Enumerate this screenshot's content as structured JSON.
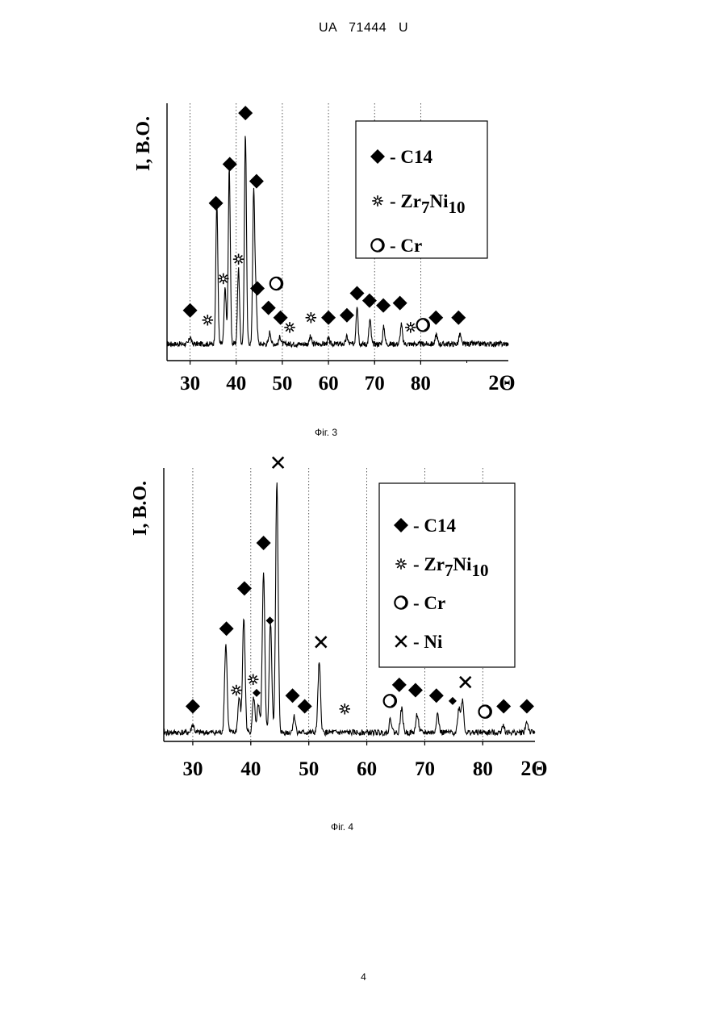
{
  "page": {
    "header": "UA   71444   U",
    "page_number": "4"
  },
  "chart_data": [
    {
      "type": "line",
      "caption": "Фіг. 3",
      "ylabel": "I, B.O.",
      "xlabel": "2Θ",
      "xlim": [
        25,
        99
      ],
      "ylim": [
        0,
        100
      ],
      "x_ticks": [
        30,
        40,
        50,
        60,
        70,
        80
      ],
      "grid": {
        "vertical_dotted": [
          30,
          40,
          50,
          60,
          70,
          80
        ]
      },
      "legend": {
        "placement": "top-right",
        "entries": [
          {
            "symbol": "diamond",
            "label": "- C14"
          },
          {
            "symbol": "asterisk",
            "label_main": "- Zr",
            "sub1": "7",
            "mid": "Ni",
            "sub2": "10"
          },
          {
            "symbol": "circle",
            "label": "-  Cr"
          }
        ]
      },
      "peaks": [
        {
          "x": 30.0,
          "h": 3
        },
        {
          "x": 35.8,
          "h": 58
        },
        {
          "x": 37.6,
          "h": 23
        },
        {
          "x": 38.5,
          "h": 72
        },
        {
          "x": 40.5,
          "h": 31
        },
        {
          "x": 42.0,
          "h": 86
        },
        {
          "x": 43.8,
          "h": 63
        },
        {
          "x": 44.3,
          "h": 18
        },
        {
          "x": 47.3,
          "h": 5
        },
        {
          "x": 49.5,
          "h": 3
        },
        {
          "x": 56.1,
          "h": 3
        },
        {
          "x": 60.0,
          "h": 2
        },
        {
          "x": 64.0,
          "h": 3
        },
        {
          "x": 66.2,
          "h": 16
        },
        {
          "x": 69.0,
          "h": 10
        },
        {
          "x": 72.0,
          "h": 7
        },
        {
          "x": 75.8,
          "h": 8
        },
        {
          "x": 83.4,
          "h": 4
        },
        {
          "x": 88.5,
          "h": 4
        }
      ],
      "markers": [
        {
          "type": "diamond",
          "x": 30.0,
          "y": 15
        },
        {
          "type": "diamond",
          "x": 35.6,
          "y": 59
        },
        {
          "type": "asterisk",
          "x": 33.8,
          "y": 11
        },
        {
          "type": "asterisk",
          "x": 37.2,
          "y": 28
        },
        {
          "type": "diamond",
          "x": 38.6,
          "y": 75
        },
        {
          "type": "asterisk",
          "x": 40.5,
          "y": 36
        },
        {
          "type": "diamond",
          "x": 42.0,
          "y": 96
        },
        {
          "type": "diamond",
          "x": 44.4,
          "y": 68
        },
        {
          "type": "diamond",
          "x": 44.6,
          "y": 24
        },
        {
          "type": "circle",
          "x": 48.7,
          "y": 26
        },
        {
          "type": "diamond",
          "x": 47.0,
          "y": 16
        },
        {
          "type": "diamond",
          "x": 49.6,
          "y": 12
        },
        {
          "type": "asterisk",
          "x": 51.6,
          "y": 8
        },
        {
          "type": "asterisk",
          "x": 56.2,
          "y": 12
        },
        {
          "type": "diamond",
          "x": 60.0,
          "y": 12
        },
        {
          "type": "diamond",
          "x": 64.0,
          "y": 13
        },
        {
          "type": "diamond",
          "x": 66.2,
          "y": 22
        },
        {
          "type": "diamond",
          "x": 68.9,
          "y": 19
        },
        {
          "type": "diamond",
          "x": 71.9,
          "y": 17
        },
        {
          "type": "diamond",
          "x": 75.5,
          "y": 18
        },
        {
          "type": "asterisk",
          "x": 77.8,
          "y": 8
        },
        {
          "type": "circle",
          "x": 80.5,
          "y": 9
        },
        {
          "type": "diamond",
          "x": 83.3,
          "y": 12
        },
        {
          "type": "diamond",
          "x": 88.2,
          "y": 12
        }
      ]
    },
    {
      "type": "line",
      "caption": "Фіг. 4",
      "ylabel": "I, B.O.",
      "xlabel": "2Θ",
      "xlim": [
        25,
        89
      ],
      "ylim": [
        0,
        100
      ],
      "x_ticks": [
        30,
        40,
        50,
        60,
        70,
        80
      ],
      "grid": {
        "vertical_dotted": [
          30,
          40,
          50,
          60,
          70,
          80
        ]
      },
      "legend": {
        "placement": "top-right",
        "entries": [
          {
            "symbol": "diamond",
            "label": "- C14"
          },
          {
            "symbol": "asterisk",
            "label_main": "- Zr",
            "sub1": "7",
            "mid": "Ni",
            "sub2": "10"
          },
          {
            "symbol": "circle",
            "label": "-  Cr"
          },
          {
            "symbol": "cross",
            "label": "-  Ni"
          }
        ]
      },
      "peaks": [
        {
          "x": 30.0,
          "h": 3
        },
        {
          "x": 35.7,
          "h": 33
        },
        {
          "x": 38.0,
          "h": 13
        },
        {
          "x": 38.8,
          "h": 43
        },
        {
          "x": 40.5,
          "h": 13
        },
        {
          "x": 41.3,
          "h": 10
        },
        {
          "x": 42.2,
          "h": 59
        },
        {
          "x": 43.4,
          "h": 41
        },
        {
          "x": 44.5,
          "h": 93
        },
        {
          "x": 47.5,
          "h": 6
        },
        {
          "x": 51.8,
          "h": 26
        },
        {
          "x": 64.1,
          "h": 5
        },
        {
          "x": 66.0,
          "h": 9
        },
        {
          "x": 68.7,
          "h": 7
        },
        {
          "x": 72.2,
          "h": 7
        },
        {
          "x": 75.9,
          "h": 9
        },
        {
          "x": 76.5,
          "h": 12
        },
        {
          "x": 83.5,
          "h": 3
        },
        {
          "x": 87.6,
          "h": 4
        }
      ],
      "markers": [
        {
          "type": "diamond",
          "x": 30.0,
          "y": 11
        },
        {
          "type": "diamond",
          "x": 35.8,
          "y": 40
        },
        {
          "type": "asterisk",
          "x": 37.5,
          "y": 17
        },
        {
          "type": "diamond",
          "x": 38.9,
          "y": 55
        },
        {
          "type": "asterisk",
          "x": 40.4,
          "y": 21
        },
        {
          "type": "diamond",
          "x": 41.0,
          "y": 16,
          "small": true
        },
        {
          "type": "diamond",
          "x": 42.2,
          "y": 72
        },
        {
          "type": "diamond",
          "x": 43.3,
          "y": 43,
          "small": true
        },
        {
          "type": "cross",
          "x": 44.7,
          "y": 102
        },
        {
          "type": "diamond",
          "x": 47.2,
          "y": 15
        },
        {
          "type": "diamond",
          "x": 49.3,
          "y": 11
        },
        {
          "type": "cross",
          "x": 52.1,
          "y": 35
        },
        {
          "type": "asterisk",
          "x": 56.2,
          "y": 10
        },
        {
          "type": "circle",
          "x": 64.0,
          "y": 13
        },
        {
          "type": "diamond",
          "x": 65.6,
          "y": 19
        },
        {
          "type": "diamond",
          "x": 68.4,
          "y": 17
        },
        {
          "type": "diamond",
          "x": 72.0,
          "y": 15
        },
        {
          "type": "diamond",
          "x": 74.8,
          "y": 13,
          "small": true
        },
        {
          "type": "cross",
          "x": 77.0,
          "y": 20
        },
        {
          "type": "circle",
          "x": 80.4,
          "y": 9
        },
        {
          "type": "diamond",
          "x": 83.6,
          "y": 11
        },
        {
          "type": "diamond",
          "x": 87.6,
          "y": 11
        }
      ]
    }
  ]
}
